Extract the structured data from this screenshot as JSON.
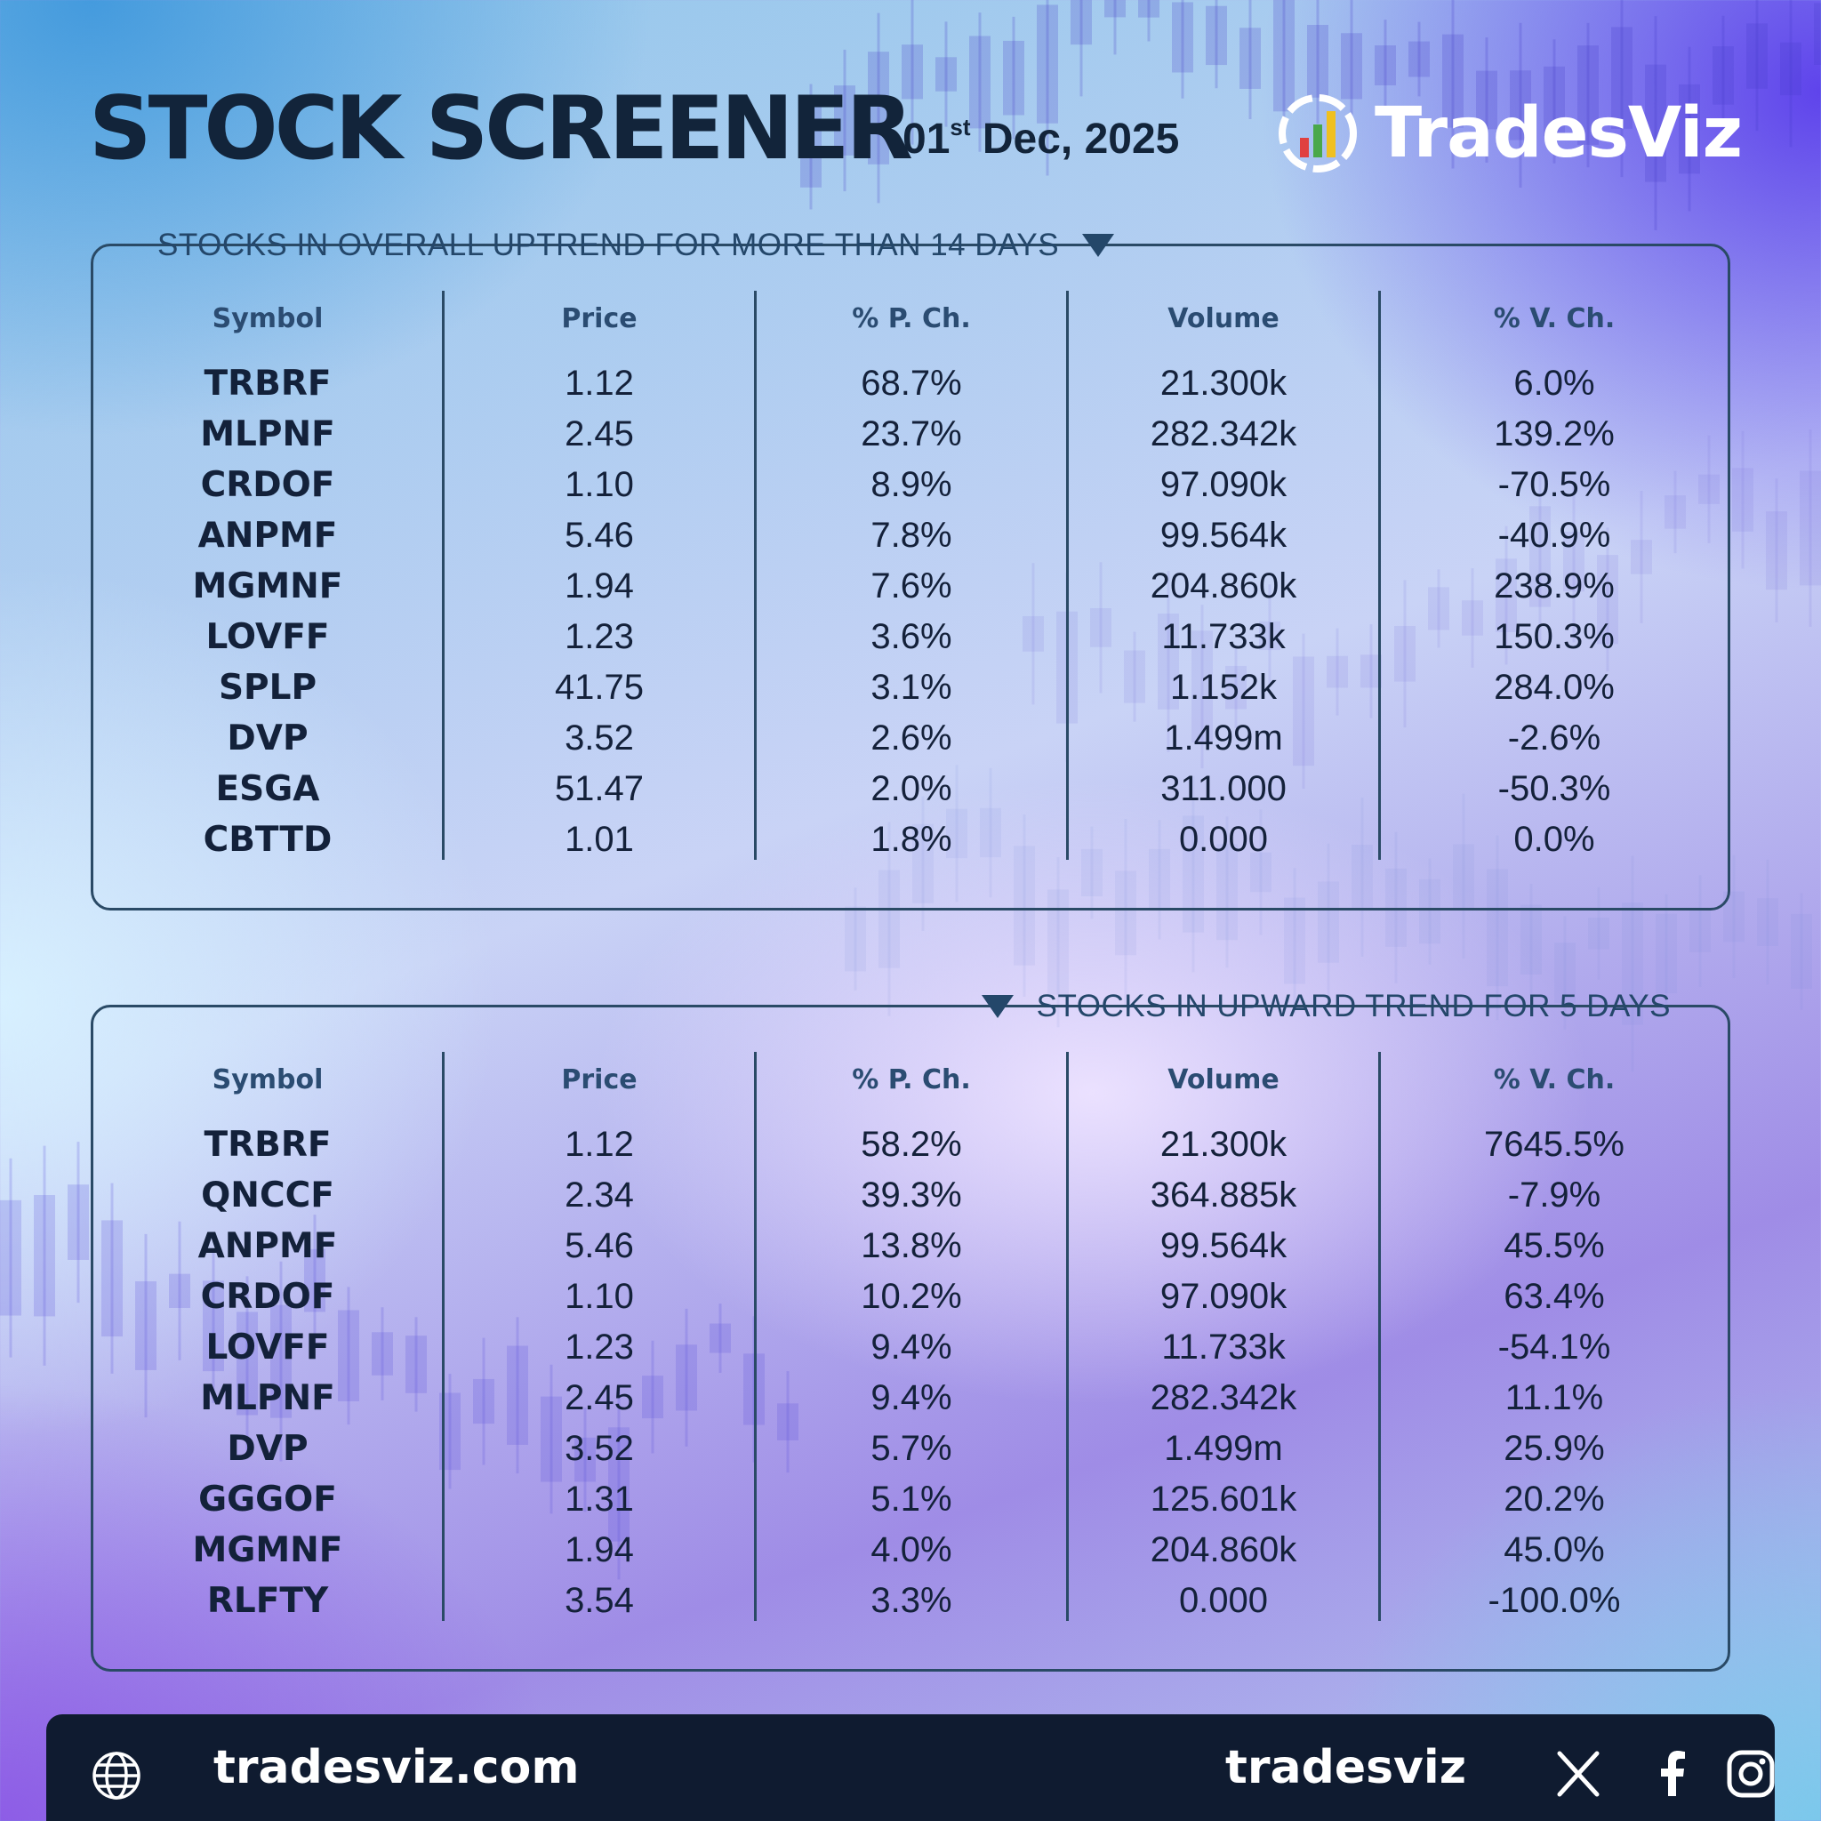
{
  "header": {
    "title": "STOCK SCREENER",
    "date_day": "01",
    "date_suffix": "st",
    "date_rest": " Dec, 2025",
    "brand_name": "TradesViz"
  },
  "columns": [
    "Symbol",
    "Price",
    "% P. Ch.",
    "Volume",
    "% V. Ch."
  ],
  "sections": [
    {
      "title": "STOCKS IN OVERALL UPTREND FOR MORE THAN 14 DAYS",
      "rows": [
        {
          "symbol": "TRBRF",
          "price": "1.12",
          "p_ch": "68.7%",
          "volume": "21.300k",
          "v_ch": "6.0%"
        },
        {
          "symbol": "MLPNF",
          "price": "2.45",
          "p_ch": "23.7%",
          "volume": "282.342k",
          "v_ch": "139.2%"
        },
        {
          "symbol": "CRDOF",
          "price": "1.10",
          "p_ch": "8.9%",
          "volume": "97.090k",
          "v_ch": "-70.5%"
        },
        {
          "symbol": "ANPMF",
          "price": "5.46",
          "p_ch": "7.8%",
          "volume": "99.564k",
          "v_ch": "-40.9%"
        },
        {
          "symbol": "MGMNF",
          "price": "1.94",
          "p_ch": "7.6%",
          "volume": "204.860k",
          "v_ch": "238.9%"
        },
        {
          "symbol": "LOVFF",
          "price": "1.23",
          "p_ch": "3.6%",
          "volume": "11.733k",
          "v_ch": "150.3%"
        },
        {
          "symbol": "SPLP",
          "price": "41.75",
          "p_ch": "3.1%",
          "volume": "1.152k",
          "v_ch": "284.0%"
        },
        {
          "symbol": "DVP",
          "price": "3.52",
          "p_ch": "2.6%",
          "volume": "1.499m",
          "v_ch": "-2.6%"
        },
        {
          "symbol": "ESGA",
          "price": "51.47",
          "p_ch": "2.0%",
          "volume": "311.000",
          "v_ch": "-50.3%"
        },
        {
          "symbol": "CBTTD",
          "price": "1.01",
          "p_ch": "1.8%",
          "volume": "0.000",
          "v_ch": "0.0%"
        }
      ]
    },
    {
      "title": "STOCKS IN UPWARD TREND FOR 5 DAYS",
      "rows": [
        {
          "symbol": "TRBRF",
          "price": "1.12",
          "p_ch": "58.2%",
          "volume": "21.300k",
          "v_ch": "7645.5%"
        },
        {
          "symbol": "QNCCF",
          "price": "2.34",
          "p_ch": "39.3%",
          "volume": "364.885k",
          "v_ch": "-7.9%"
        },
        {
          "symbol": "ANPMF",
          "price": "5.46",
          "p_ch": "13.8%",
          "volume": "99.564k",
          "v_ch": "45.5%"
        },
        {
          "symbol": "CRDOF",
          "price": "1.10",
          "p_ch": "10.2%",
          "volume": "97.090k",
          "v_ch": "63.4%"
        },
        {
          "symbol": "LOVFF",
          "price": "1.23",
          "p_ch": "9.4%",
          "volume": "11.733k",
          "v_ch": "-54.1%"
        },
        {
          "symbol": "MLPNF",
          "price": "2.45",
          "p_ch": "9.4%",
          "volume": "282.342k",
          "v_ch": "11.1%"
        },
        {
          "symbol": "DVP",
          "price": "3.52",
          "p_ch": "5.7%",
          "volume": "1.499m",
          "v_ch": "25.9%"
        },
        {
          "symbol": "GGGOF",
          "price": "1.31",
          "p_ch": "5.1%",
          "volume": "125.601k",
          "v_ch": "20.2%"
        },
        {
          "symbol": "MGMNF",
          "price": "1.94",
          "p_ch": "4.0%",
          "volume": "204.860k",
          "v_ch": "45.0%"
        },
        {
          "symbol": "RLFTY",
          "price": "3.54",
          "p_ch": "3.3%",
          "volume": "0.000",
          "v_ch": "-100.0%"
        }
      ]
    }
  ],
  "footer": {
    "website": "tradesviz.com",
    "handle": "tradesviz"
  },
  "icons": {
    "globe": "globe-icon",
    "x": "x-icon",
    "facebook": "facebook-icon",
    "instagram": "instagram-icon",
    "logo": "tradesviz-logo-icon"
  },
  "colors": {
    "heading": "#12243a",
    "panel_border": "#2a4a66",
    "footer_bg": "#0f1b30",
    "brand_text": "#ffffff"
  }
}
